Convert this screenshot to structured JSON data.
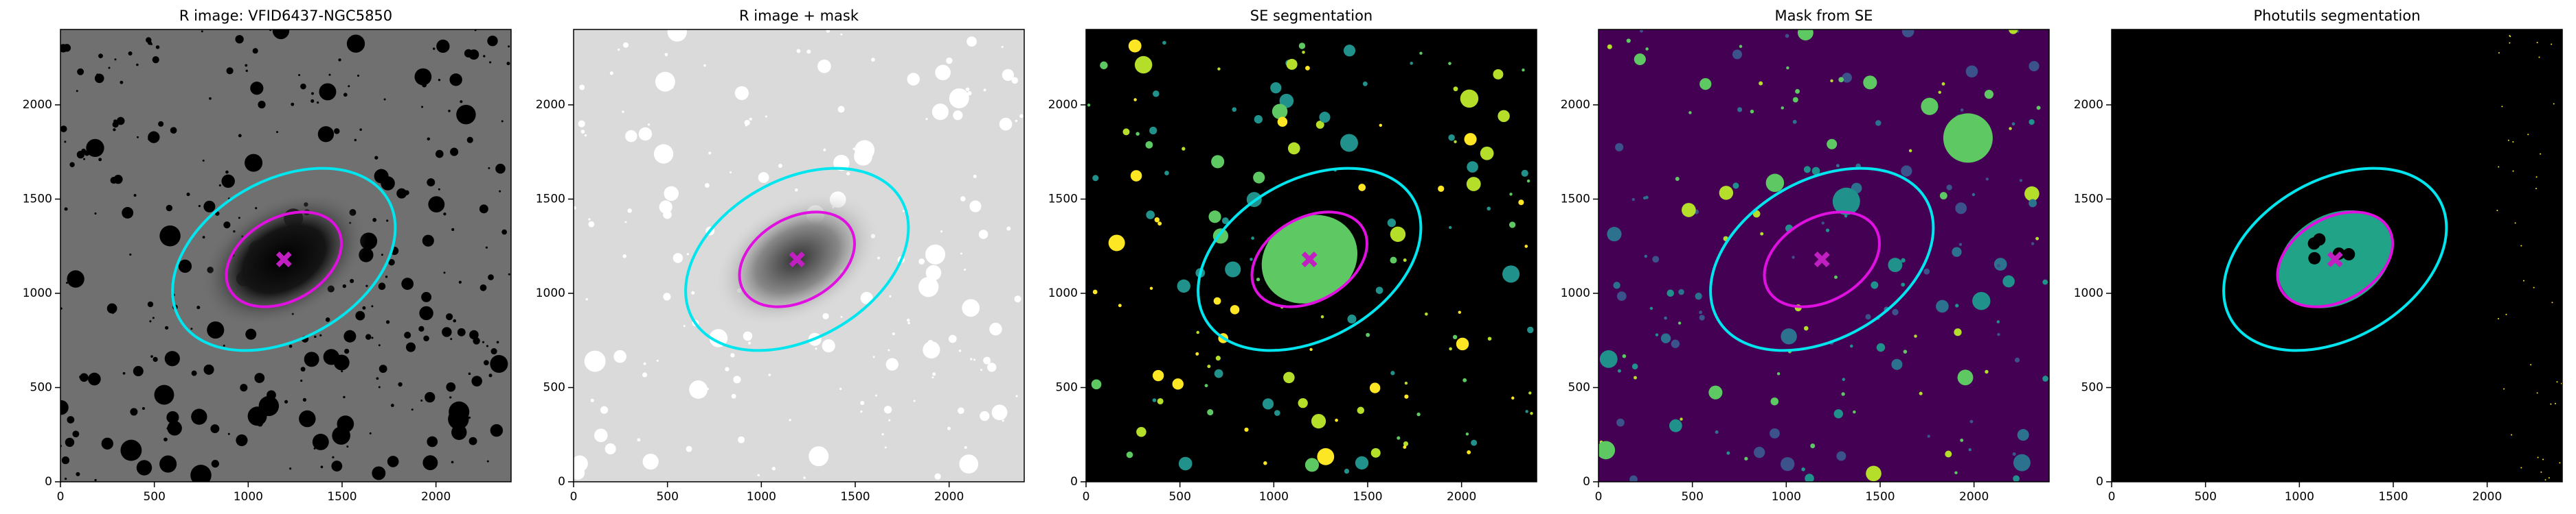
{
  "chart_data": [
    {
      "type": "image",
      "title": "R image: VFID6437-NGC5850",
      "xlim": [
        0,
        2400
      ],
      "ylim": [
        0,
        2400
      ],
      "xticks": [
        0,
        500,
        1000,
        1500,
        2000
      ],
      "yticks": [
        0,
        500,
        1000,
        1500,
        2000
      ],
      "ellipses": [
        {
          "color": "#00e5ee",
          "cx": 1190,
          "cy": 1180,
          "a": 640,
          "b": 420,
          "angle": 30
        },
        {
          "color": "#e010e0",
          "cx": 1190,
          "cy": 1180,
          "a": 330,
          "b": 220,
          "angle": 30
        }
      ],
      "marker": {
        "color": "#c21fc2",
        "x": 1190,
        "y": 1180
      }
    },
    {
      "type": "image",
      "title": "R image + mask",
      "xlim": [
        0,
        2400
      ],
      "ylim": [
        0,
        2400
      ],
      "xticks": [
        0,
        500,
        1000,
        1500,
        2000
      ],
      "yticks": [
        0,
        500,
        1000,
        1500,
        2000
      ],
      "ellipses": [
        {
          "color": "#00e5ee",
          "cx": 1190,
          "cy": 1180,
          "a": 640,
          "b": 420,
          "angle": 30
        },
        {
          "color": "#e010e0",
          "cx": 1190,
          "cy": 1180,
          "a": 330,
          "b": 220,
          "angle": 30
        }
      ],
      "marker": {
        "color": "#c21fc2",
        "x": 1190,
        "y": 1180
      }
    },
    {
      "type": "image",
      "title": "SE segmentation",
      "xlim": [
        0,
        2400
      ],
      "ylim": [
        0,
        2400
      ],
      "xticks": [
        0,
        500,
        1000,
        1500,
        2000
      ],
      "yticks": [
        0,
        500,
        1000,
        1500,
        2000
      ],
      "ellipses": [
        {
          "color": "#00e5ee",
          "cx": 1190,
          "cy": 1180,
          "a": 640,
          "b": 420,
          "angle": 30
        },
        {
          "color": "#e010e0",
          "cx": 1190,
          "cy": 1180,
          "a": 330,
          "b": 220,
          "angle": 30
        }
      ],
      "marker": {
        "color": "#c21fc2",
        "x": 1190,
        "y": 1180
      }
    },
    {
      "type": "image",
      "title": "Mask from SE",
      "xlim": [
        0,
        2400
      ],
      "ylim": [
        0,
        2400
      ],
      "xticks": [
        0,
        500,
        1000,
        1500,
        2000
      ],
      "yticks": [
        0,
        500,
        1000,
        1500,
        2000
      ],
      "ellipses": [
        {
          "color": "#00e5ee",
          "cx": 1190,
          "cy": 1180,
          "a": 640,
          "b": 420,
          "angle": 30
        },
        {
          "color": "#e010e0",
          "cx": 1190,
          "cy": 1180,
          "a": 330,
          "b": 220,
          "angle": 30
        }
      ],
      "marker": {
        "color": "#c21fc2",
        "x": 1190,
        "y": 1180
      }
    },
    {
      "type": "image",
      "title": "Photutils segmentation",
      "xlim": [
        0,
        2400
      ],
      "ylim": [
        0,
        2400
      ],
      "xticks": [
        0,
        500,
        1000,
        1500,
        2000
      ],
      "yticks": [
        0,
        500,
        1000,
        1500,
        2000
      ],
      "ellipses": [
        {
          "color": "#00e5ee",
          "cx": 1190,
          "cy": 1180,
          "a": 640,
          "b": 420,
          "angle": 30
        },
        {
          "color": "#e010e0",
          "cx": 1190,
          "cy": 1180,
          "a": 330,
          "b": 220,
          "angle": 30
        }
      ],
      "marker": {
        "color": "#c21fc2",
        "x": 1190,
        "y": 1180
      }
    }
  ]
}
